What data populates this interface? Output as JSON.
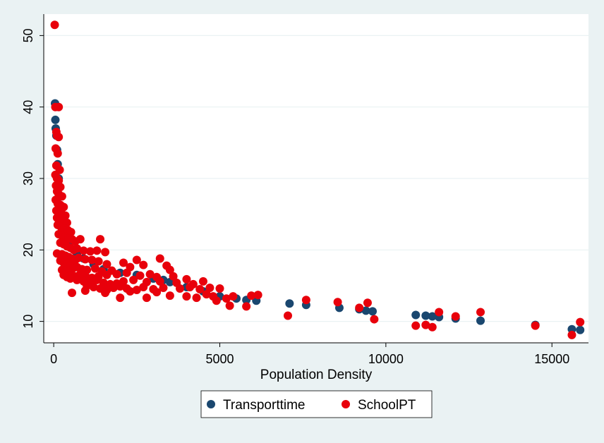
{
  "chart_data": {
    "type": "scatter",
    "title": "",
    "xlabel": "Population Density",
    "ylabel": "",
    "xlim": [
      -300,
      16100
    ],
    "ylim": [
      7,
      53
    ],
    "xticks": [
      0,
      5000,
      10000,
      15000
    ],
    "xtick_labels": [
      "0",
      "5000",
      "10000",
      "15000"
    ],
    "yticks": [
      10,
      20,
      30,
      40,
      50
    ],
    "ytick_labels": [
      "10",
      "20",
      "30",
      "40",
      "50"
    ],
    "grid": "horizontal",
    "legend_position": "bottom",
    "series": [
      {
        "name": "Transporttime",
        "color": "#1a476f",
        "points": [
          [
            40,
            40.5
          ],
          [
            50,
            38.2
          ],
          [
            60,
            37.0
          ],
          [
            80,
            36.0
          ],
          [
            100,
            34.0
          ],
          [
            120,
            32.0
          ],
          [
            150,
            30.0
          ],
          [
            200,
            27.5
          ],
          [
            250,
            25.0
          ],
          [
            300,
            23.5
          ],
          [
            400,
            22.0
          ],
          [
            500,
            21.0
          ],
          [
            700,
            19.5
          ],
          [
            900,
            18.8
          ],
          [
            1200,
            18.0
          ],
          [
            1500,
            17.3
          ],
          [
            2000,
            16.8
          ],
          [
            2500,
            16.5
          ],
          [
            3000,
            16.0
          ],
          [
            3300,
            15.8
          ],
          [
            3500,
            15.5
          ],
          [
            4000,
            14.8
          ],
          [
            4500,
            14.2
          ],
          [
            5000,
            13.5
          ],
          [
            5500,
            13.2
          ],
          [
            5800,
            13.0
          ],
          [
            6100,
            12.9
          ],
          [
            7100,
            12.5
          ],
          [
            7600,
            12.3
          ],
          [
            8600,
            11.9
          ],
          [
            9200,
            11.7
          ],
          [
            9400,
            11.5
          ],
          [
            9600,
            11.4
          ],
          [
            10900,
            10.9
          ],
          [
            11200,
            10.8
          ],
          [
            11400,
            10.7
          ],
          [
            11600,
            10.6
          ],
          [
            12100,
            10.4
          ],
          [
            12850,
            10.1
          ],
          [
            14500,
            9.5
          ],
          [
            15600,
            8.9
          ],
          [
            15850,
            8.8
          ]
        ]
      },
      {
        "name": "SchoolPT",
        "color": "#e8000b",
        "points": [
          [
            30,
            51.5
          ],
          [
            50,
            40.0
          ],
          [
            150,
            40.0
          ],
          [
            80,
            36.5
          ],
          [
            100,
            36.0
          ],
          [
            150,
            35.8
          ],
          [
            60,
            34.2
          ],
          [
            120,
            33.5
          ],
          [
            80,
            31.8
          ],
          [
            180,
            31.2
          ],
          [
            50,
            30.5
          ],
          [
            100,
            30.0
          ],
          [
            150,
            29.7
          ],
          [
            70,
            29.0
          ],
          [
            200,
            28.8
          ],
          [
            100,
            28.2
          ],
          [
            150,
            27.8
          ],
          [
            250,
            27.5
          ],
          [
            60,
            27.0
          ],
          [
            120,
            26.5
          ],
          [
            200,
            26.3
          ],
          [
            300,
            26.0
          ],
          [
            80,
            25.5
          ],
          [
            150,
            25.2
          ],
          [
            250,
            25.0
          ],
          [
            350,
            24.8
          ],
          [
            100,
            24.5
          ],
          [
            200,
            24.2
          ],
          [
            300,
            24.0
          ],
          [
            400,
            23.8
          ],
          [
            120,
            23.5
          ],
          [
            220,
            23.2
          ],
          [
            320,
            23.0
          ],
          [
            420,
            22.8
          ],
          [
            520,
            22.5
          ],
          [
            150,
            22.2
          ],
          [
            250,
            22.0
          ],
          [
            350,
            21.8
          ],
          [
            450,
            21.6
          ],
          [
            550,
            21.5
          ],
          [
            650,
            21.2
          ],
          [
            800,
            21.5
          ],
          [
            1400,
            21.5
          ],
          [
            200,
            21.0
          ],
          [
            300,
            20.8
          ],
          [
            400,
            20.5
          ],
          [
            500,
            20.3
          ],
          [
            600,
            20.0
          ],
          [
            700,
            20.2
          ],
          [
            900,
            19.9
          ],
          [
            1100,
            19.8
          ],
          [
            1300,
            19.9
          ],
          [
            1550,
            19.7
          ],
          [
            100,
            19.5
          ],
          [
            250,
            19.4
          ],
          [
            350,
            19.2
          ],
          [
            450,
            19.0
          ],
          [
            550,
            18.8
          ],
          [
            650,
            18.6
          ],
          [
            750,
            18.9
          ],
          [
            950,
            18.7
          ],
          [
            1150,
            18.6
          ],
          [
            1350,
            18.4
          ],
          [
            1600,
            18.0
          ],
          [
            2100,
            18.2
          ],
          [
            2500,
            18.6
          ],
          [
            3200,
            18.8
          ],
          [
            3400,
            17.8
          ],
          [
            200,
            18.5
          ],
          [
            300,
            18.2
          ],
          [
            400,
            18.0
          ],
          [
            500,
            17.8
          ],
          [
            600,
            17.5
          ],
          [
            700,
            17.6
          ],
          [
            850,
            17.3
          ],
          [
            1000,
            17.2
          ],
          [
            1250,
            17.4
          ],
          [
            1450,
            17.0
          ],
          [
            1750,
            17.1
          ],
          [
            2300,
            17.6
          ],
          [
            2700,
            17.9
          ],
          [
            3500,
            17.2
          ],
          [
            250,
            17.2
          ],
          [
            350,
            17.0
          ],
          [
            450,
            16.8
          ],
          [
            550,
            16.5
          ],
          [
            650,
            16.3
          ],
          [
            800,
            16.6
          ],
          [
            950,
            16.4
          ],
          [
            1150,
            16.1
          ],
          [
            1350,
            16.3
          ],
          [
            1600,
            16.5
          ],
          [
            1900,
            16.6
          ],
          [
            2200,
            16.8
          ],
          [
            2600,
            16.4
          ],
          [
            2900,
            16.6
          ],
          [
            3100,
            16.2
          ],
          [
            3600,
            16.3
          ],
          [
            4000,
            15.9
          ],
          [
            300,
            16.5
          ],
          [
            400,
            16.2
          ],
          [
            500,
            16.0
          ],
          [
            700,
            15.8
          ],
          [
            900,
            15.6
          ],
          [
            1100,
            15.5
          ],
          [
            1300,
            15.8
          ],
          [
            1500,
            15.4
          ],
          [
            1700,
            15.2
          ],
          [
            1900,
            15.3
          ],
          [
            2100,
            15.6
          ],
          [
            2400,
            15.8
          ],
          [
            2800,
            15.5
          ],
          [
            3200,
            15.6
          ],
          [
            3700,
            15.4
          ],
          [
            4200,
            15.2
          ],
          [
            4500,
            15.6
          ],
          [
            1000,
            15.0
          ],
          [
            1200,
            14.8
          ],
          [
            1400,
            14.6
          ],
          [
            1600,
            14.4
          ],
          [
            1800,
            14.7
          ],
          [
            2000,
            14.9
          ],
          [
            2200,
            14.6
          ],
          [
            2500,
            14.4
          ],
          [
            2700,
            14.8
          ],
          [
            3000,
            14.5
          ],
          [
            3300,
            14.7
          ],
          [
            3800,
            14.6
          ],
          [
            4100,
            14.8
          ],
          [
            4400,
            14.5
          ],
          [
            4700,
            14.7
          ],
          [
            5000,
            14.6
          ],
          [
            550,
            14.0
          ],
          [
            950,
            14.3
          ],
          [
            1550,
            14.0
          ],
          [
            2300,
            14.2
          ],
          [
            3100,
            14.1
          ],
          [
            3500,
            13.6
          ],
          [
            4000,
            13.5
          ],
          [
            4300,
            13.3
          ],
          [
            4600,
            13.8
          ],
          [
            4800,
            13.5
          ],
          [
            5200,
            13.2
          ],
          [
            5400,
            13.5
          ],
          [
            2000,
            13.3
          ],
          [
            2800,
            13.3
          ],
          [
            4900,
            12.9
          ],
          [
            5300,
            12.2
          ],
          [
            5800,
            12.1
          ],
          [
            5950,
            13.6
          ],
          [
            6150,
            13.7
          ],
          [
            7050,
            10.8
          ],
          [
            7600,
            13.0
          ],
          [
            8550,
            12.7
          ],
          [
            9200,
            11.9
          ],
          [
            9450,
            12.6
          ],
          [
            9650,
            10.3
          ],
          [
            10900,
            9.4
          ],
          [
            11200,
            9.5
          ],
          [
            11400,
            9.2
          ],
          [
            11600,
            11.3
          ],
          [
            12100,
            10.7
          ],
          [
            12850,
            11.3
          ],
          [
            14500,
            9.4
          ],
          [
            15600,
            8.1
          ],
          [
            15850,
            9.9
          ]
        ]
      }
    ]
  }
}
